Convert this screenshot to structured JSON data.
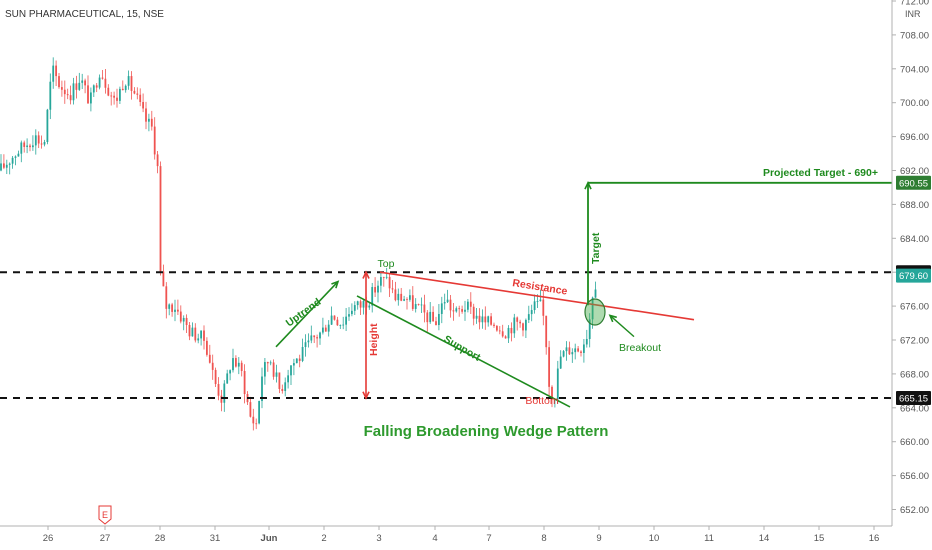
{
  "header": {
    "title": "SUN PHARMACEUTICAL, 15, NSE",
    "currency": "INR"
  },
  "colors": {
    "up": "#26a69a",
    "down": "#ef5350",
    "green": "#1e8a1e",
    "red": "#e53935",
    "hline": "#111111",
    "badge_dark": "#111111",
    "badge_green": "#2e7d32",
    "badge_teal": "#26a69a"
  },
  "chart_data": {
    "type": "candlestick",
    "title": "Falling Broadening Wedge Pattern",
    "ylim": [
      650,
      713
    ],
    "y_ticks": [
      652,
      656,
      660,
      664,
      668,
      672,
      676,
      680,
      684,
      688,
      692,
      696,
      700,
      704,
      708,
      712
    ],
    "y_tick_labels": [
      "652.00",
      "656.00",
      "660.00",
      "664.00",
      "668.00",
      "672.00",
      "676.00",
      "680.00",
      "684.00",
      "688.00",
      "692.00",
      "696.00",
      "700.00",
      "704.00",
      "708.00",
      "712.00"
    ],
    "x_ticks": [
      "26",
      "27",
      "28",
      "31",
      "Jun",
      "2",
      "3",
      "4",
      "7",
      "8",
      "9",
      "10",
      "11",
      "14",
      "15",
      "16"
    ],
    "horizontal_levels": [
      {
        "value": 680.0,
        "label": "680.00",
        "style": "dashed"
      },
      {
        "value": 665.15,
        "label": "665.15",
        "style": "dashed"
      }
    ],
    "price_badges": [
      {
        "value": 690.55,
        "label": "690.55",
        "color": "green"
      },
      {
        "value": 679.6,
        "label": "679.60",
        "color": "teal"
      }
    ],
    "annotations": {
      "projected_target": "Projected Target - 690+",
      "target": "Target",
      "top": "Top",
      "resistance": "Resistance",
      "uptrend": "Uptrend",
      "height": "Height",
      "support": "Support",
      "bottom": "Bottom",
      "breakout": "Breakout"
    },
    "earnings_marker": "E",
    "ohlc_approx": [
      {
        "day": "25",
        "open": 692,
        "high": 697,
        "low": 691,
        "close": 695
      },
      {
        "day": "26",
        "open": 695,
        "high": 706,
        "low": 694,
        "close": 703
      },
      {
        "day": "27",
        "open": 703,
        "high": 710,
        "low": 699,
        "close": 702
      },
      {
        "day": "28",
        "open": 702,
        "high": 704,
        "low": 674,
        "close": 676
      },
      {
        "day": "31",
        "open": 676,
        "high": 678,
        "low": 664,
        "close": 670
      },
      {
        "day": "Jun",
        "open": 670,
        "high": 672,
        "low": 659,
        "close": 668
      },
      {
        "day": "2",
        "open": 668,
        "high": 677,
        "low": 666,
        "close": 676
      },
      {
        "day": "3",
        "open": 676,
        "high": 680,
        "low": 674,
        "close": 677
      },
      {
        "day": "4",
        "open": 677,
        "high": 679,
        "low": 673,
        "close": 675
      },
      {
        "day": "7",
        "open": 675,
        "high": 677,
        "low": 672,
        "close": 675
      },
      {
        "day": "8",
        "open": 675,
        "high": 677,
        "low": 665,
        "close": 671
      },
      {
        "day": "9",
        "open": 671,
        "high": 680,
        "low": 670,
        "close": 679.6
      }
    ]
  }
}
